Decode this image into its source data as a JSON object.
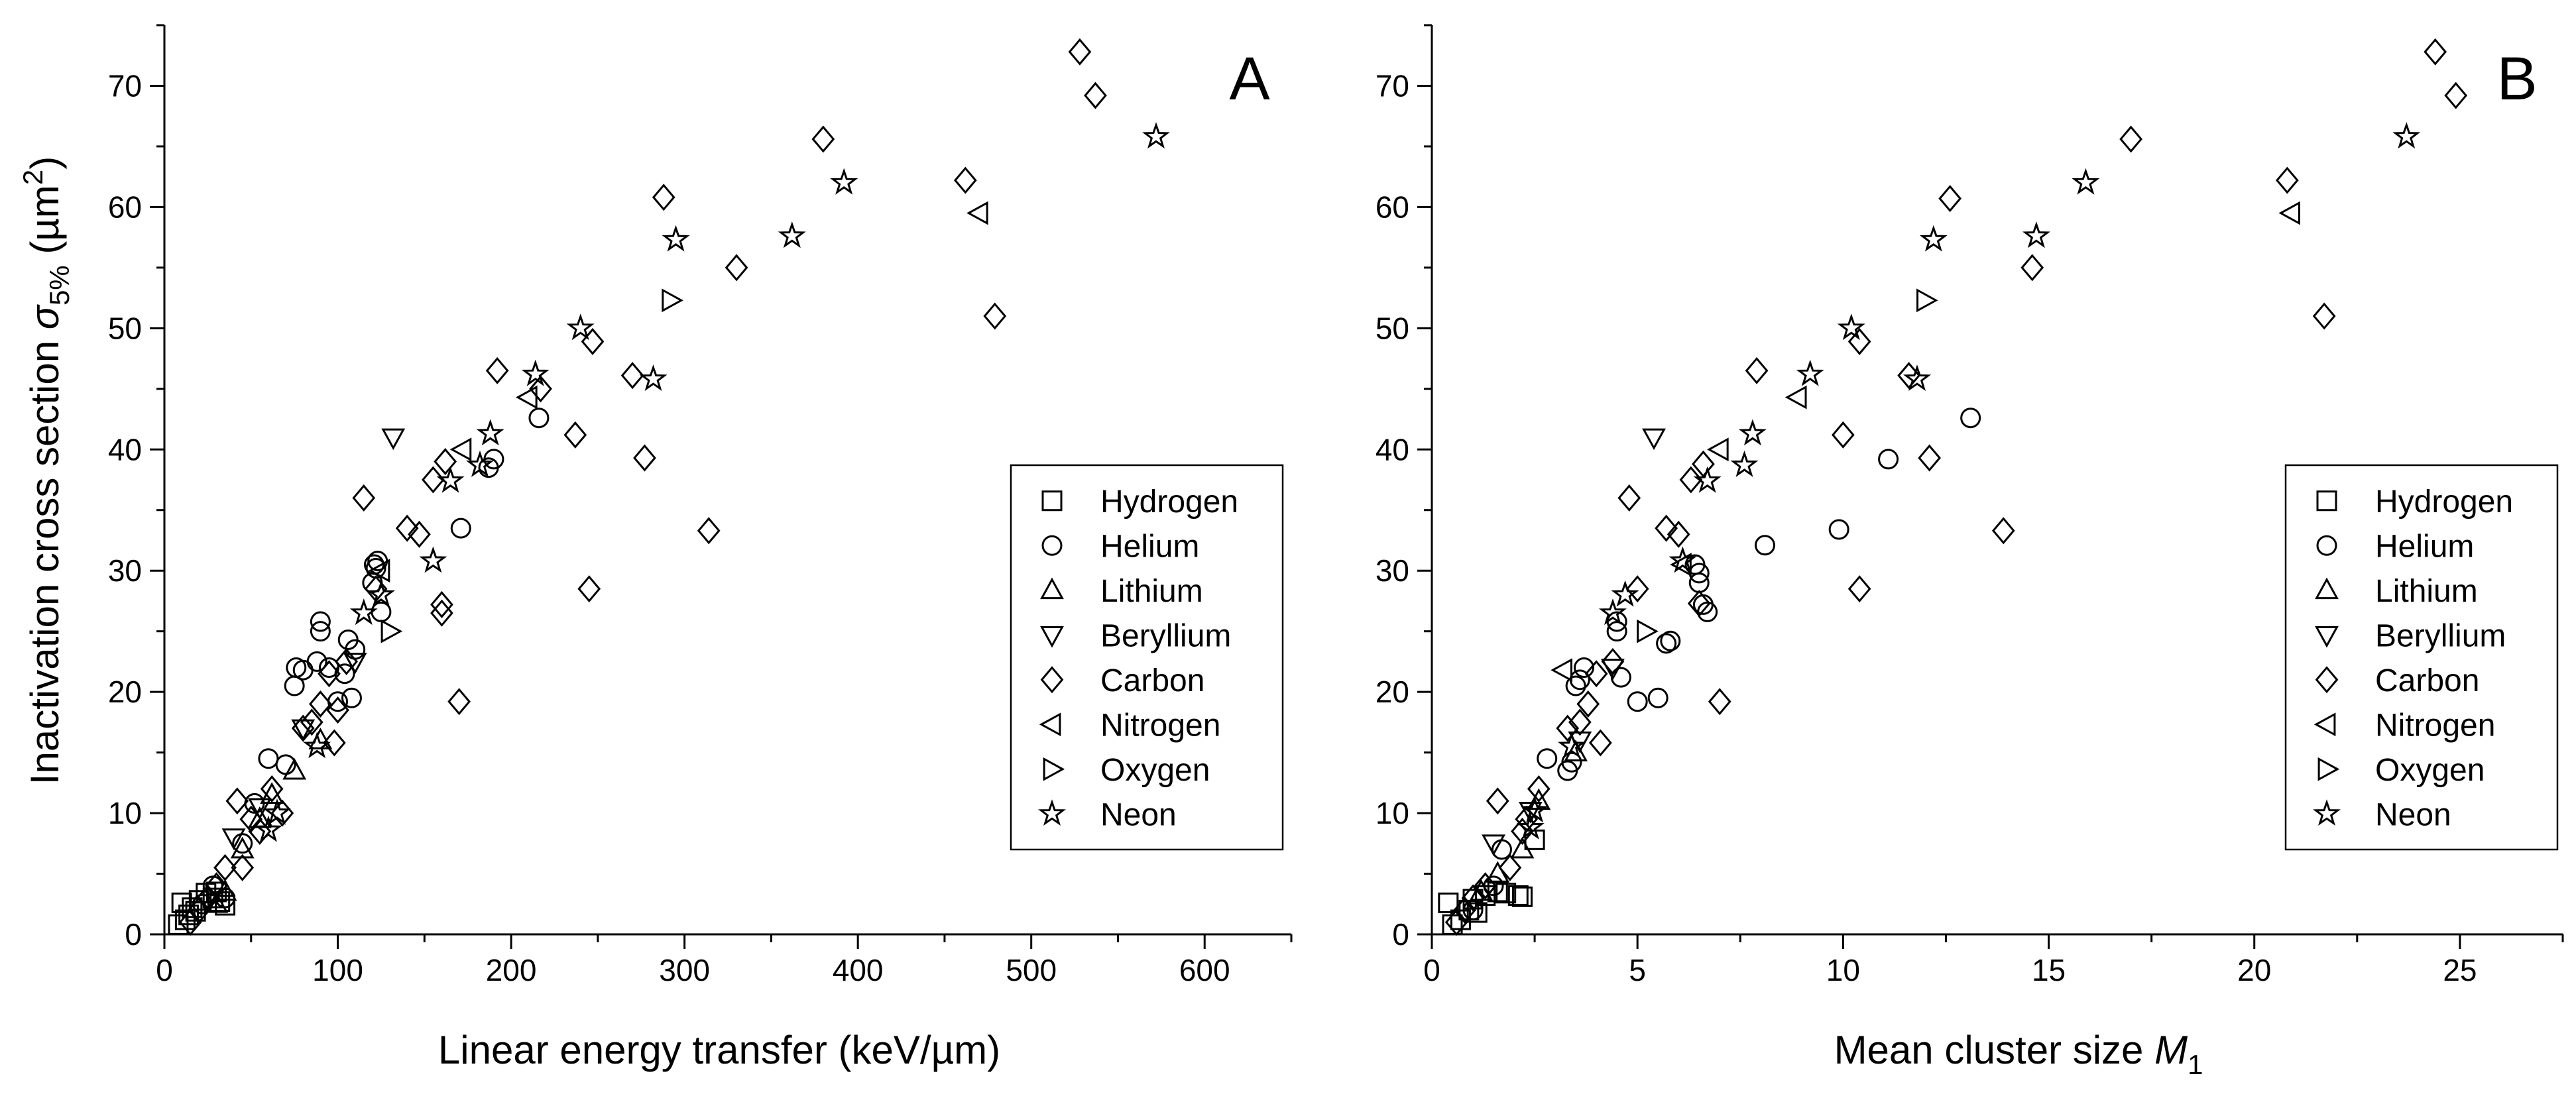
{
  "figure": {
    "shared_ylabel": {
      "main": "Inactivation cross section ",
      "sym": "σ",
      "sub": "5%",
      "unit_open": " (µm",
      "unit_sup": "2",
      "unit_close": ")"
    }
  },
  "chart_data": [
    {
      "type": "scatter",
      "panel_label": "A",
      "xlabel": "Linear energy transfer (keV/µm)",
      "ylabel": "Inactivation cross section σ5% (µm²)",
      "xlim": [
        0,
        650
      ],
      "ylim": [
        0,
        75
      ],
      "xticks": [
        0,
        100,
        200,
        300,
        400,
        500,
        600
      ],
      "yticks": [
        0,
        10,
        20,
        30,
        40,
        50,
        60,
        70
      ],
      "grid": false,
      "legend_position": "right",
      "series": [
        {
          "name": "Hydrogen",
          "marker": "square",
          "points": [
            [
              8,
              0.8
            ],
            [
              10,
              2.6
            ],
            [
              12,
              1.2
            ],
            [
              14,
              1.6
            ],
            [
              16,
              2.2
            ],
            [
              18,
              1.9
            ],
            [
              20,
              2.8
            ],
            [
              24,
              3.4
            ],
            [
              28,
              3.0
            ],
            [
              30,
              3.5
            ],
            [
              32,
              2.7
            ],
            [
              35,
              2.4
            ]
          ]
        },
        {
          "name": "Helium",
          "marker": "circle",
          "points": [
            [
              22,
              2.5
            ],
            [
              28,
              4.0
            ],
            [
              35,
              3.0
            ],
            [
              45,
              7.5
            ],
            [
              52,
              10.8
            ],
            [
              60,
              14.5
            ],
            [
              70,
              14.0
            ],
            [
              75,
              20.5
            ],
            [
              76,
              22.0
            ],
            [
              80,
              21.8
            ],
            [
              88,
              22.5
            ],
            [
              90,
              25.0
            ],
            [
              90,
              25.8
            ],
            [
              95,
              22.0
            ],
            [
              100,
              19.2
            ],
            [
              104,
              21.5
            ],
            [
              106,
              24.3
            ],
            [
              108,
              19.5
            ],
            [
              110,
              23.5
            ],
            [
              120,
              29.0
            ],
            [
              121,
              30.5
            ],
            [
              122,
              30.2
            ],
            [
              123,
              30.8
            ],
            [
              125,
              26.6
            ],
            [
              171,
              33.5
            ],
            [
              187,
              38.5
            ],
            [
              190,
              39.2
            ],
            [
              216,
              42.6
            ]
          ]
        },
        {
          "name": "Lithium",
          "marker": "triangle-up",
          "points": [
            [
              30,
              2.5
            ],
            [
              35,
              3.5
            ],
            [
              45,
              7.0
            ],
            [
              55,
              9.5
            ],
            [
              62,
              11.5
            ],
            [
              75,
              13.5
            ],
            [
              90,
              16.0
            ]
          ]
        },
        {
          "name": "Beryllium",
          "marker": "triangle-down",
          "points": [
            [
              40,
              8.0
            ],
            [
              55,
              10.5
            ],
            [
              80,
              17.0
            ],
            [
              110,
              22.5
            ],
            [
              132,
              41.0
            ]
          ]
        },
        {
          "name": "Carbon",
          "marker": "diamond",
          "points": [
            [
              15,
              1.0
            ],
            [
              20,
              2.0
            ],
            [
              25,
              3.0
            ],
            [
              30,
              4.0
            ],
            [
              35,
              5.5
            ],
            [
              42,
              11.0
            ],
            [
              45,
              5.5
            ],
            [
              50,
              9.5
            ],
            [
              55,
              8.5
            ],
            [
              62,
              12.0
            ],
            [
              68,
              10.0
            ],
            [
              80,
              17.0
            ],
            [
              85,
              17.5
            ],
            [
              90,
              19.0
            ],
            [
              95,
              21.5
            ],
            [
              98,
              15.8
            ],
            [
              100,
              18.5
            ],
            [
              105,
              22.5
            ],
            [
              115,
              36.0
            ],
            [
              122,
              28.5
            ],
            [
              140,
              33.5
            ],
            [
              147,
              33.0
            ],
            [
              155,
              37.5
            ],
            [
              160,
              26.5
            ],
            [
              160,
              27.2
            ],
            [
              162,
              39.0
            ],
            [
              170,
              19.2
            ],
            [
              192,
              46.5
            ],
            [
              217,
              45.0
            ],
            [
              237,
              41.2
            ],
            [
              247,
              48.9
            ],
            [
              245,
              28.5
            ],
            [
              270,
              46.1
            ],
            [
              277,
              39.3
            ],
            [
              288,
              60.8
            ],
            [
              314,
              33.3
            ],
            [
              330,
              55.0
            ],
            [
              380,
              65.6
            ],
            [
              462,
              62.2
            ],
            [
              479,
              51.0
            ],
            [
              528,
              72.8
            ],
            [
              537,
              69.2
            ]
          ]
        },
        {
          "name": "Nitrogen",
          "marker": "triangle-left",
          "points": [
            [
              125,
              30.0
            ],
            [
              172,
              40.0
            ],
            [
              210,
              44.3
            ],
            [
              470,
              59.5
            ]
          ]
        },
        {
          "name": "Oxygen",
          "marker": "triangle-right",
          "points": [
            [
              130,
              25.0
            ],
            [
              292,
              52.3
            ]
          ]
        },
        {
          "name": "Neon",
          "marker": "star",
          "points": [
            [
              60,
              8.6
            ],
            [
              65,
              10.0
            ],
            [
              88,
              15.5
            ],
            [
              115,
              26.5
            ],
            [
              125,
              28.0
            ],
            [
              155,
              30.8
            ],
            [
              165,
              37.4
            ],
            [
              182,
              38.7
            ],
            [
              188,
              41.3
            ],
            [
              214,
              46.2
            ],
            [
              240,
              50.0
            ],
            [
              282,
              45.8
            ],
            [
              295,
              57.3
            ],
            [
              362,
              57.6
            ],
            [
              392,
              62.0
            ],
            [
              572,
              65.8
            ]
          ]
        }
      ]
    },
    {
      "type": "scatter",
      "panel_label": "B",
      "xlabel": "Mean cluster size M1",
      "xlabel_main": "Mean cluster size ",
      "xlabel_sym": "M",
      "xlabel_sub": "1",
      "xlim": [
        0,
        27.5
      ],
      "ylim": [
        0,
        75
      ],
      "xticks": [
        0,
        5,
        10,
        15,
        20,
        25
      ],
      "yticks": [
        0,
        10,
        20,
        30,
        40,
        50,
        60,
        70
      ],
      "grid": false,
      "legend_position": "right",
      "series": [
        {
          "name": "Hydrogen",
          "marker": "square",
          "points": [
            [
              0.4,
              2.6
            ],
            [
              0.5,
              0.8
            ],
            [
              0.7,
              1.2
            ],
            [
              0.9,
              2.0
            ],
            [
              1.0,
              2.9
            ],
            [
              1.1,
              1.8
            ],
            [
              1.3,
              3.2
            ],
            [
              1.6,
              3.5
            ],
            [
              1.8,
              3.4
            ],
            [
              2.1,
              3.2
            ],
            [
              2.2,
              3.1
            ],
            [
              2.5,
              7.8
            ]
          ]
        },
        {
          "name": "Helium",
          "marker": "circle",
          "points": [
            [
              1.0,
              2.0
            ],
            [
              1.5,
              4.0
            ],
            [
              1.7,
              7.0
            ],
            [
              2.8,
              14.5
            ],
            [
              3.3,
              13.5
            ],
            [
              3.4,
              14.2
            ],
            [
              3.5,
              20.5
            ],
            [
              3.6,
              21.0
            ],
            [
              3.7,
              22.0
            ],
            [
              4.5,
              25.0
            ],
            [
              4.5,
              25.8
            ],
            [
              4.6,
              21.2
            ],
            [
              5.0,
              19.2
            ],
            [
              5.5,
              19.5
            ],
            [
              5.7,
              24.0
            ],
            [
              5.8,
              24.2
            ],
            [
              6.4,
              30.5
            ],
            [
              6.5,
              29.8
            ],
            [
              6.5,
              29.0
            ],
            [
              6.6,
              27.2
            ],
            [
              6.7,
              26.6
            ],
            [
              8.1,
              32.1
            ],
            [
              9.9,
              33.4
            ],
            [
              11.1,
              39.2
            ],
            [
              13.1,
              42.6
            ]
          ]
        },
        {
          "name": "Lithium",
          "marker": "triangle-up",
          "points": [
            [
              1.2,
              3.5
            ],
            [
              1.6,
              5.0
            ],
            [
              2.2,
              7.0
            ],
            [
              2.6,
              11.0
            ],
            [
              3.5,
              15.0
            ]
          ]
        },
        {
          "name": "Beryllium",
          "marker": "triangle-down",
          "points": [
            [
              1.5,
              7.5
            ],
            [
              2.4,
              10.2
            ],
            [
              3.6,
              16.0
            ],
            [
              4.4,
              22.0
            ],
            [
              5.4,
              41.0
            ]
          ]
        },
        {
          "name": "Carbon",
          "marker": "diamond",
          "points": [
            [
              0.6,
              1.0
            ],
            [
              0.8,
              2.0
            ],
            [
              1.0,
              3.0
            ],
            [
              1.3,
              4.0
            ],
            [
              1.6,
              11.0
            ],
            [
              1.9,
              5.5
            ],
            [
              2.3,
              9.5
            ],
            [
              2.6,
              12.0
            ],
            [
              2.2,
              8.5
            ],
            [
              3.3,
              17.0
            ],
            [
              3.6,
              17.5
            ],
            [
              3.8,
              19.0
            ],
            [
              4.0,
              21.5
            ],
            [
              4.1,
              15.8
            ],
            [
              4.4,
              22.5
            ],
            [
              4.8,
              36.0
            ],
            [
              5.0,
              28.5
            ],
            [
              5.7,
              33.5
            ],
            [
              6.0,
              33.0
            ],
            [
              6.3,
              37.5
            ],
            [
              6.6,
              38.8
            ],
            [
              6.5,
              27.3
            ],
            [
              7.0,
              19.2
            ],
            [
              7.9,
              46.5
            ],
            [
              10.0,
              41.2
            ],
            [
              10.4,
              28.5
            ],
            [
              10.4,
              48.9
            ],
            [
              11.6,
              46.1
            ],
            [
              12.1,
              39.3
            ],
            [
              12.6,
              60.7
            ],
            [
              13.9,
              33.3
            ],
            [
              14.6,
              55.0
            ],
            [
              17.0,
              65.6
            ],
            [
              20.8,
              62.2
            ],
            [
              21.7,
              51.0
            ],
            [
              24.4,
              72.8
            ],
            [
              24.9,
              69.2
            ]
          ]
        },
        {
          "name": "Nitrogen",
          "marker": "triangle-left",
          "points": [
            [
              3.2,
              21.8
            ],
            [
              6.1,
              30.5
            ],
            [
              7.0,
              40.0
            ],
            [
              8.9,
              44.3
            ],
            [
              20.9,
              59.5
            ]
          ]
        },
        {
          "name": "Oxygen",
          "marker": "triangle-right",
          "points": [
            [
              5.2,
              25.0
            ],
            [
              12.0,
              52.3
            ]
          ]
        },
        {
          "name": "Neon",
          "marker": "star",
          "points": [
            [
              2.4,
              8.8
            ],
            [
              2.5,
              10.2
            ],
            [
              3.4,
              15.5
            ],
            [
              4.4,
              26.5
            ],
            [
              4.7,
              28.0
            ],
            [
              6.1,
              30.8
            ],
            [
              6.7,
              37.4
            ],
            [
              7.6,
              38.7
            ],
            [
              7.8,
              41.3
            ],
            [
              9.2,
              46.2
            ],
            [
              10.2,
              50.0
            ],
            [
              11.8,
              45.8
            ],
            [
              12.2,
              57.3
            ],
            [
              14.7,
              57.6
            ],
            [
              15.9,
              62.0
            ],
            [
              23.7,
              65.8
            ]
          ]
        }
      ]
    }
  ]
}
